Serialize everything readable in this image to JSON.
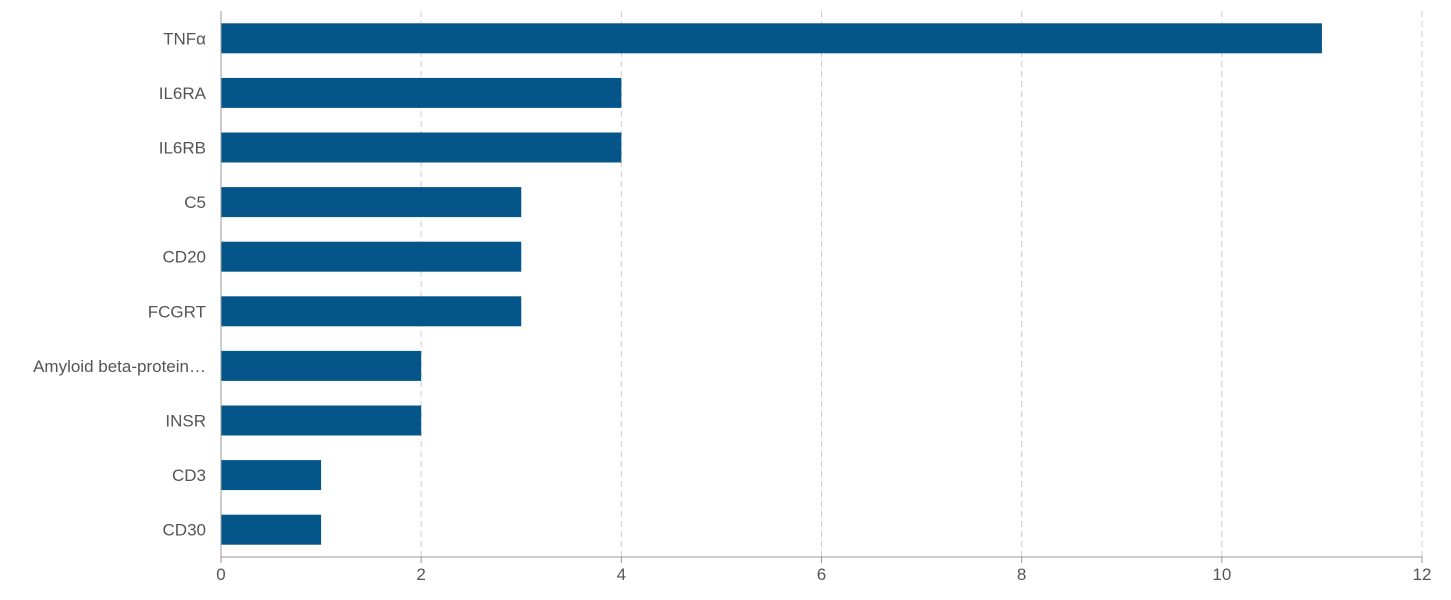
{
  "chart_data": {
    "type": "bar",
    "orientation": "horizontal",
    "categories": [
      "TNFα",
      "IL6RA",
      "IL6RB",
      "C5",
      "CD20",
      "FCGRT",
      "Amyloid beta-protein…",
      "INSR",
      "CD3",
      "CD30"
    ],
    "values": [
      11,
      4,
      4,
      3,
      3,
      3,
      2,
      2,
      1,
      1
    ],
    "xlim": [
      0,
      12
    ],
    "x_ticks": [
      "0",
      "2",
      "4",
      "6",
      "8",
      "10",
      "12"
    ],
    "title": "",
    "xlabel": "",
    "ylabel": "",
    "grid": "vertical dashed",
    "legend": "none",
    "bar_color": "#03558a",
    "grid_color": "#cccccc",
    "axis_color": "#999999"
  }
}
